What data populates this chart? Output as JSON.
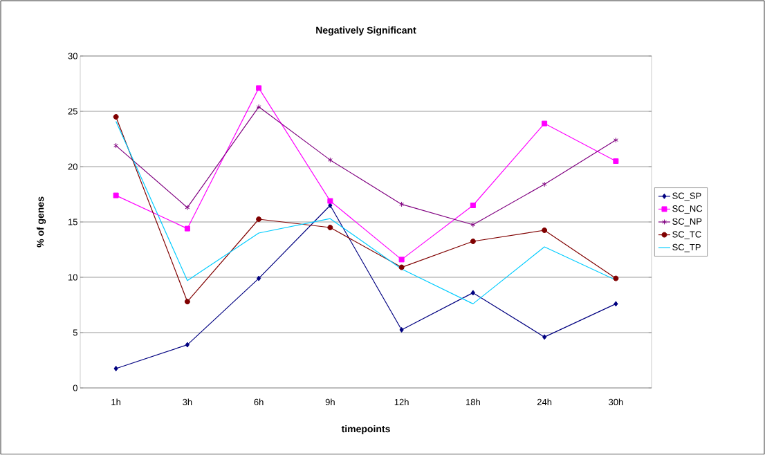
{
  "chart_data": {
    "type": "line",
    "title": "Negatively Significant",
    "xlabel": "timepoints",
    "ylabel": "% of genes",
    "categories": [
      "1h",
      "3h",
      "6h",
      "9h",
      "12h",
      "18h",
      "24h",
      "30h"
    ],
    "series": [
      {
        "name": "SC_SP",
        "color": "#000080",
        "marker": "diamond",
        "values": [
          1.75,
          3.9,
          9.9,
          16.5,
          5.25,
          8.6,
          4.6,
          7.6
        ]
      },
      {
        "name": "SC_NC",
        "color": "#ff00ff",
        "marker": "square",
        "values": [
          17.4,
          14.4,
          27.1,
          16.9,
          11.6,
          16.5,
          23.9,
          20.5
        ]
      },
      {
        "name": "SC_NP",
        "color": "#800080",
        "marker": "cross",
        "values": [
          21.9,
          16.3,
          25.4,
          20.6,
          16.6,
          14.75,
          18.4,
          22.4
        ]
      },
      {
        "name": "SC_TC",
        "color": "#800000",
        "marker": "circle",
        "values": [
          24.5,
          7.8,
          15.25,
          14.5,
          10.9,
          13.25,
          14.25,
          9.9
        ]
      },
      {
        "name": "SC_TP",
        "color": "#00ccff",
        "marker": "none",
        "values": [
          24.1,
          9.7,
          14.0,
          15.3,
          10.75,
          7.6,
          12.75,
          9.75
        ]
      }
    ],
    "ylim": [
      0,
      30
    ],
    "yticks": [
      0,
      5,
      10,
      15,
      20,
      25,
      30
    ],
    "grid": "y",
    "legend": "right",
    "line_style": "solid"
  }
}
